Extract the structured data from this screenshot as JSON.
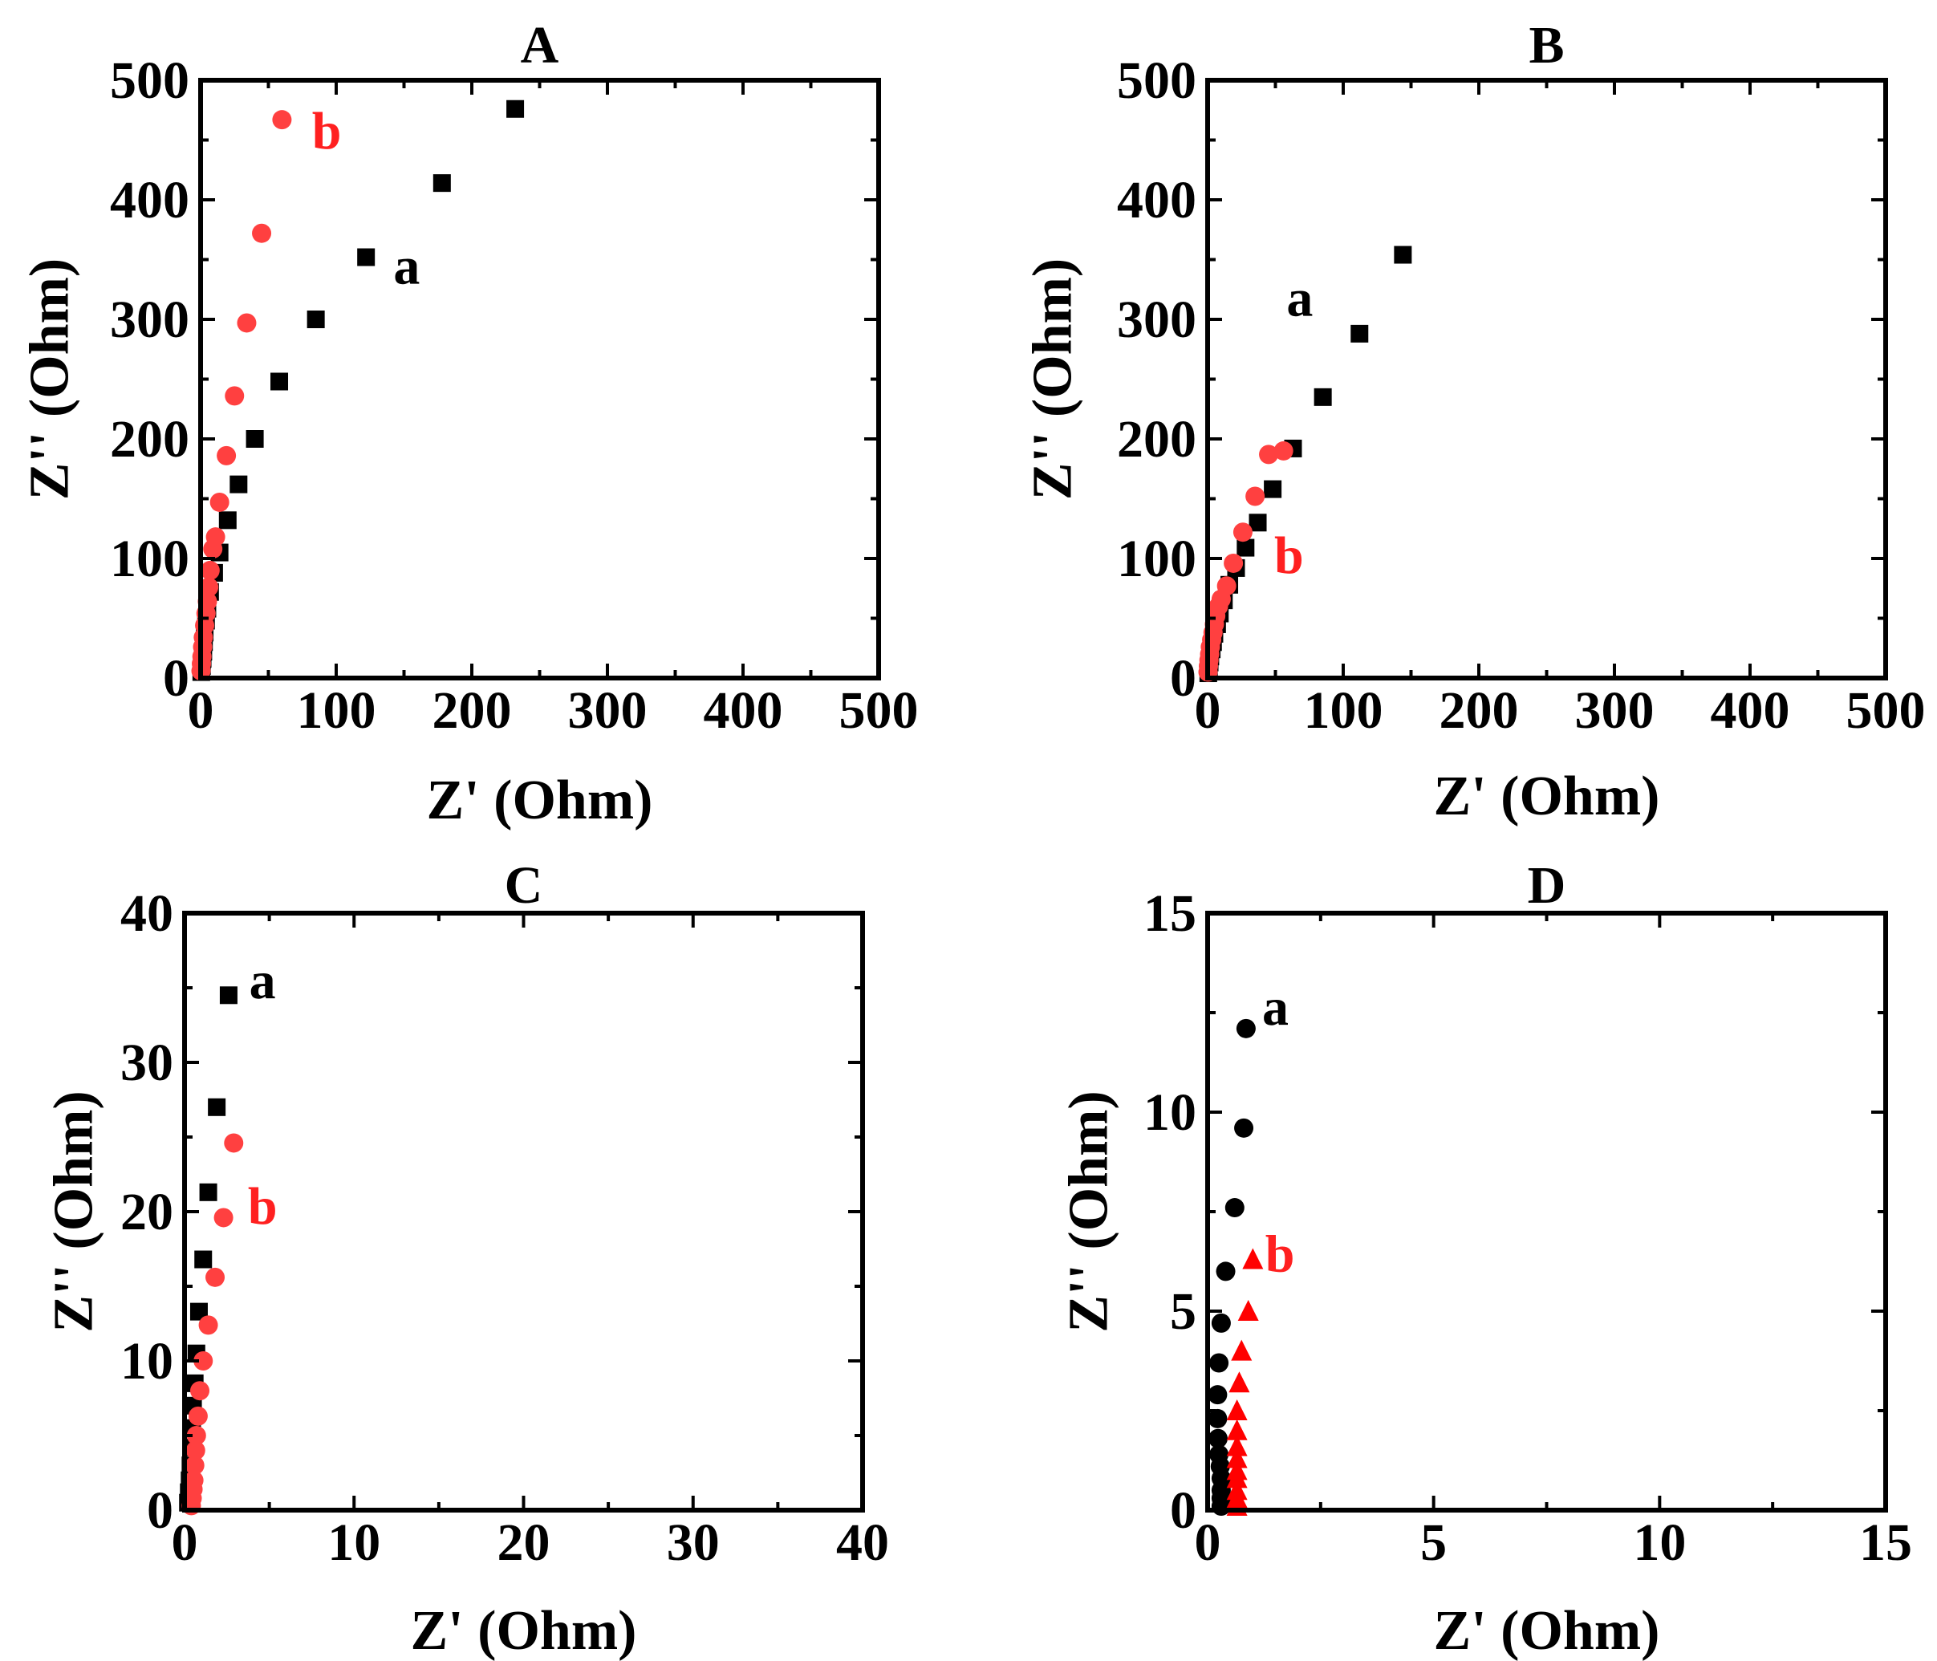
{
  "colors": {
    "series_a": "#000000",
    "series_b": "#ff4040",
    "series_b_triangle": "#ff0000",
    "axis": "#000000"
  },
  "chart_data": [
    {
      "id": "A",
      "type": "scatter",
      "title": "A",
      "xlabel": "Z' (Ohm)",
      "ylabel": "Z'' (Ohm)",
      "xlim": [
        0,
        500
      ],
      "ylim": [
        0,
        500
      ],
      "xticks": [
        0,
        100,
        200,
        300,
        400,
        500
      ],
      "yticks": [
        0,
        100,
        200,
        300,
        400,
        500
      ],
      "tick_labels_x": [
        "0",
        "100",
        "200",
        "300",
        "400",
        "500"
      ],
      "tick_labels_y": [
        "0",
        "100",
        "200",
        "300",
        "400",
        "500"
      ],
      "series": [
        {
          "name": "a",
          "marker": "square",
          "color": "#000000",
          "x": [
            0.5,
            1,
            1.5,
            2,
            2.5,
            3,
            4,
            5,
            7,
            10,
            14,
            20,
            28,
            40,
            58,
            85,
            122,
            178,
            232
          ],
          "y": [
            5,
            10,
            16,
            22,
            30,
            38,
            48,
            58,
            72,
            88,
            105,
            132,
            162,
            200,
            248,
            300,
            352,
            414,
            476
          ]
        },
        {
          "name": "b",
          "marker": "circle",
          "color": "#ff4040",
          "x": [
            0.3,
            0.6,
            1,
            1.5,
            2,
            3,
            4,
            5,
            6,
            7,
            9,
            11,
            14,
            19,
            25,
            34,
            45,
            60
          ],
          "y": [
            6,
            12,
            18,
            26,
            34,
            44,
            54,
            64,
            76,
            90,
            108,
            118,
            147,
            186,
            236,
            297,
            372,
            467
          ]
        }
      ],
      "annotations": [
        {
          "text": "a",
          "x": 152,
          "y": 330,
          "color": "#000000"
        },
        {
          "text": "b",
          "x": 93,
          "y": 443,
          "color": "#ff2020"
        }
      ]
    },
    {
      "id": "B",
      "type": "scatter",
      "title": "B",
      "xlabel": "Z' (Ohm)",
      "ylabel": "Z'' (Ohm)",
      "xlim": [
        0,
        500
      ],
      "ylim": [
        0,
        500
      ],
      "xticks": [
        0,
        100,
        200,
        300,
        400,
        500
      ],
      "yticks": [
        0,
        100,
        200,
        300,
        400,
        500
      ],
      "tick_labels_x": [
        "0",
        "100",
        "200",
        "300",
        "400",
        "500"
      ],
      "tick_labels_y": [
        "0",
        "100",
        "200",
        "300",
        "400",
        "500"
      ],
      "series": [
        {
          "name": "a",
          "marker": "square",
          "color": "#000000",
          "x": [
            0.5,
            1,
            1.5,
            2,
            3,
            4,
            5,
            7,
            9,
            12,
            16,
            21,
            28,
            37,
            48,
            63,
            85,
            112,
            144
          ],
          "y": [
            4,
            8,
            13,
            18,
            24,
            30,
            37,
            45,
            54,
            65,
            78,
            92,
            109,
            130,
            158,
            192,
            235,
            288,
            354
          ]
        },
        {
          "name": "b",
          "marker": "circle",
          "color": "#ff4040",
          "x": [
            0.3,
            0.6,
            1,
            1.5,
            2,
            3,
            4,
            5,
            6,
            8,
            10,
            14,
            19,
            26,
            35,
            45,
            56
          ],
          "y": [
            5,
            10,
            15,
            20,
            26,
            32,
            38,
            45,
            52,
            60,
            66,
            77,
            96,
            122,
            152,
            187,
            190
          ]
        }
      ],
      "annotations": [
        {
          "text": "a",
          "x": 68,
          "y": 303,
          "color": "#000000"
        },
        {
          "text": "b",
          "x": 60,
          "y": 88,
          "color": "#ff2020"
        }
      ]
    },
    {
      "id": "C",
      "type": "scatter",
      "title": "C",
      "xlabel": "Z' (Ohm)",
      "ylabel": "Z'' (Ohm)",
      "xlim": [
        0,
        40
      ],
      "ylim": [
        0,
        40
      ],
      "xticks": [
        0,
        10,
        20,
        30,
        40
      ],
      "yticks": [
        0,
        10,
        20,
        30,
        40
      ],
      "tick_labels_x": [
        "0",
        "10",
        "20",
        "30",
        "40"
      ],
      "tick_labels_y": [
        "0",
        "10",
        "20",
        "30",
        "40"
      ],
      "series": [
        {
          "name": "a",
          "marker": "square",
          "color": "#000000",
          "x": [
            0.2,
            0.25,
            0.3,
            0.35,
            0.4,
            0.45,
            0.5,
            0.6,
            0.7,
            0.85,
            1.1,
            1.4,
            1.9,
            2.6
          ],
          "y": [
            0.5,
            1.2,
            2,
            3,
            4.2,
            5.5,
            7,
            8.5,
            10.5,
            13.3,
            16.8,
            21.3,
            27,
            34.5
          ]
        },
        {
          "name": "b",
          "marker": "circle",
          "color": "#ff4040",
          "x": [
            0.4,
            0.45,
            0.5,
            0.55,
            0.6,
            0.65,
            0.7,
            0.8,
            0.9,
            1.1,
            1.4,
            1.8,
            2.3,
            2.9
          ],
          "y": [
            0.3,
            0.8,
            1.4,
            2,
            3,
            4,
            5,
            6.3,
            8,
            10,
            12.4,
            15.6,
            19.6,
            24.6
          ]
        }
      ],
      "annotations": [
        {
          "text": "a",
          "x": 4.6,
          "y": 34.3,
          "color": "#000000"
        },
        {
          "text": "b",
          "x": 4.6,
          "y": 19.2,
          "color": "#ff2020"
        }
      ]
    },
    {
      "id": "D",
      "type": "scatter",
      "title": "D",
      "xlabel": "Z' (Ohm)",
      "ylabel": "Z'' (Ohm)",
      "xlim": [
        0,
        15
      ],
      "ylim": [
        0,
        15
      ],
      "xticks": [
        0,
        5,
        10,
        15
      ],
      "yticks": [
        0,
        5,
        10,
        15
      ],
      "tick_labels_x": [
        "0",
        "5",
        "10",
        "15"
      ],
      "tick_labels_y": [
        "0",
        "5",
        "10",
        "15"
      ],
      "series": [
        {
          "name": "a",
          "marker": "circle",
          "color": "#000000",
          "x": [
            0.3,
            0.3,
            0.3,
            0.3,
            0.28,
            0.25,
            0.23,
            0.22,
            0.22,
            0.25,
            0.3,
            0.4,
            0.6,
            0.8
          ],
          "y": [
            0.1,
            0.3,
            0.5,
            0.8,
            1.1,
            1.4,
            1.8,
            2.3,
            2.9,
            3.7,
            4.7,
            6,
            7.6,
            9.6
          ]
        },
        {
          "name": "a_top",
          "marker": "circle",
          "color": "#000000",
          "x": [
            0.85
          ],
          "y": [
            12.1
          ]
        },
        {
          "name": "b",
          "marker": "triangle",
          "color": "#ff0000",
          "x": [
            0.65,
            0.65,
            0.65,
            0.65,
            0.65,
            0.65,
            0.65,
            0.65,
            0.65,
            0.7,
            0.75,
            0.9,
            1.0
          ],
          "y": [
            0.1,
            0.3,
            0.5,
            0.8,
            1.0,
            1.3,
            1.6,
            2.0,
            2.5,
            3.2,
            4.0,
            5.0,
            6.3
          ]
        }
      ],
      "annotations": [
        {
          "text": "a",
          "x": 1.5,
          "y": 12.2,
          "color": "#000000"
        },
        {
          "text": "b",
          "x": 1.6,
          "y": 6.0,
          "color": "#ff2020"
        }
      ]
    }
  ]
}
